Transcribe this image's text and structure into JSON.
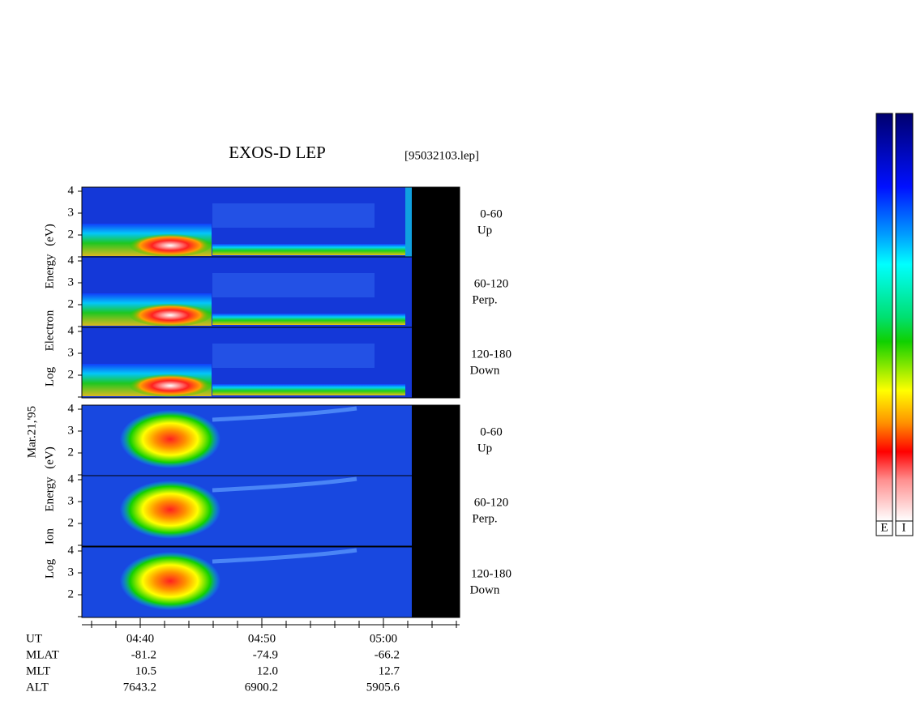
{
  "title": "EXOS-D LEP",
  "file": "[95032103.lep]",
  "date": "Mar.21,'95",
  "electron_axis": [
    "Log",
    "Electron",
    "Energy",
    "(eV)"
  ],
  "ion_axis": [
    "Log",
    "Ion",
    "Energy",
    "(eV)"
  ],
  "yticks": [
    2,
    3,
    4
  ],
  "electron_panels": [
    {
      "range": "0-60",
      "dir": "Up"
    },
    {
      "range": "60-120",
      "dir": "Perp."
    },
    {
      "range": "120-180",
      "dir": "Down"
    }
  ],
  "ion_panels": [
    {
      "range": "0-60",
      "dir": "Up"
    },
    {
      "range": "60-120",
      "dir": "Perp."
    },
    {
      "range": "120-180",
      "dir": "Down"
    }
  ],
  "rows": [
    {
      "label": "UT",
      "values": [
        "04:40",
        "04:50",
        "05:00"
      ]
    },
    {
      "label": "MLAT",
      "values": [
        "-81.2",
        "-74.9",
        "-66.2"
      ]
    },
    {
      "label": "MLT",
      "values": [
        "10.5",
        "12.0",
        "12.7"
      ]
    },
    {
      "label": "ALT",
      "values": [
        "7643.2",
        "6900.2",
        "5905.6"
      ]
    }
  ],
  "colorbar_labels": [
    "E",
    "I"
  ]
}
